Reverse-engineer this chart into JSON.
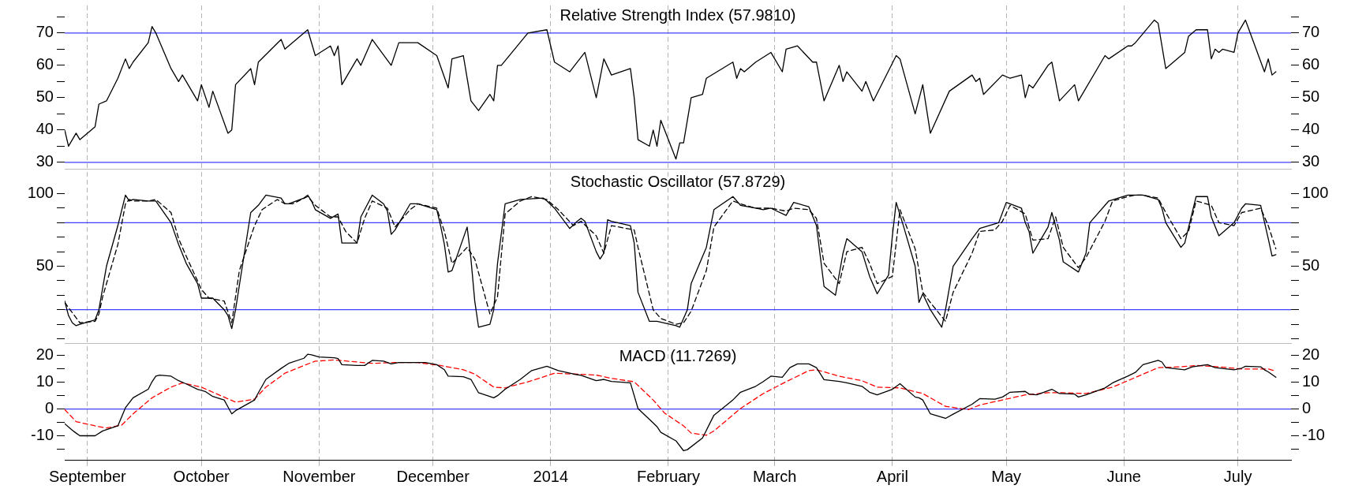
{
  "chart_data": [
    {
      "type": "line",
      "title": "Relative Strength Index (57.9810)",
      "xlim": [
        "2013-08-26",
        "2014-07-15"
      ],
      "xticks": [
        {
          "value": "2013-09-01",
          "label": null
        },
        {
          "value": "2013-10-01",
          "label": null
        },
        {
          "value": "2013-11-01",
          "label": null
        },
        {
          "value": "2013-12-01",
          "label": null
        },
        {
          "value": "2014-01-01",
          "label": null
        },
        {
          "value": "2014-02-01",
          "label": null
        },
        {
          "value": "2014-03-01",
          "label": null
        },
        {
          "value": "2014-04-01",
          "label": null
        },
        {
          "value": "2014-05-01",
          "label": null
        },
        {
          "value": "2014-06-01",
          "label": null
        },
        {
          "value": "2014-07-01",
          "label": null
        }
      ],
      "ylim": [
        28,
        78.5
      ],
      "yticks": [
        30,
        {
          "value": 35,
          "label": null
        },
        40,
        {
          "value": 45,
          "label": null
        },
        50,
        {
          "value": 55,
          "label": null
        },
        60,
        {
          "value": 65,
          "label": null
        },
        70,
        {
          "value": 75,
          "label": null
        }
      ],
      "y2lim": [
        28,
        78.5
      ],
      "y2ticks": [
        30,
        {
          "value": 35,
          "label": null
        },
        40,
        {
          "value": 45,
          "label": null
        },
        50,
        {
          "value": 55,
          "label": null
        },
        60,
        {
          "value": 65,
          "label": null
        },
        70,
        {
          "value": 75,
          "label": null
        }
      ],
      "grid": "x",
      "tick_labels": "y",
      "marker": "none",
      "ref_lines": [
        {
          "axis": "y",
          "value": 70,
          "color": "#4040ff"
        },
        {
          "axis": "y",
          "value": 30,
          "color": "#4040ff"
        }
      ],
      "series": [
        {
          "color": "#000000",
          "line_style": "solid",
          "x": [
            "2013-08-26",
            "2013-08-27",
            "2013-08-28",
            "2013-08-29",
            "2013-08-30",
            "2013-09-03",
            "2013-09-04",
            "2013-09-06",
            "2013-09-09",
            "2013-09-11",
            "2013-09-12",
            "2013-09-13",
            "2013-09-17",
            "2013-09-18",
            "2013-09-19",
            "2013-09-23",
            "2013-09-25",
            "2013-09-26",
            "2013-09-30",
            "2013-10-01",
            "2013-10-03",
            "2013-10-04",
            "2013-10-08",
            "2013-10-09",
            "2013-10-10",
            "2013-10-14",
            "2013-10-15",
            "2013-10-16",
            "2013-10-22",
            "2013-10-23",
            "2013-10-29",
            "2013-10-31",
            "2013-11-04",
            "2013-11-05",
            "2013-11-06",
            "2013-11-07",
            "2013-11-11",
            "2013-11-12",
            "2013-11-15",
            "2013-11-20",
            "2013-11-22",
            "2013-11-27",
            "2013-12-02",
            "2013-12-05",
            "2013-12-06",
            "2013-12-09",
            "2013-12-11",
            "2013-12-13",
            "2013-12-16",
            "2013-12-17",
            "2013-12-18",
            "2013-12-19",
            "2013-12-26",
            "2013-12-31",
            "2014-01-02",
            "2014-01-06",
            "2014-01-10",
            "2014-01-13",
            "2014-01-15",
            "2014-01-17",
            "2014-01-22",
            "2014-01-23",
            "2014-01-24",
            "2014-01-27",
            "2014-01-28",
            "2014-01-29",
            "2014-01-30",
            "2014-01-31",
            "2014-02-03",
            "2014-02-04",
            "2014-02-05",
            "2014-02-07",
            "2014-02-10",
            "2014-02-11",
            "2014-02-18",
            "2014-02-19",
            "2014-02-20",
            "2014-02-21",
            "2014-02-24",
            "2014-02-28",
            "2014-03-03",
            "2014-03-04",
            "2014-03-07",
            "2014-03-11",
            "2014-03-12",
            "2014-03-14",
            "2014-03-18",
            "2014-03-19",
            "2014-03-20",
            "2014-03-24",
            "2014-03-25",
            "2014-03-27",
            "2014-04-02",
            "2014-04-03",
            "2014-04-07",
            "2014-04-09",
            "2014-04-11",
            "2014-04-16",
            "2014-04-22",
            "2014-04-23",
            "2014-04-24",
            "2014-04-25",
            "2014-04-30",
            "2014-05-02",
            "2014-05-05",
            "2014-05-06",
            "2014-05-07",
            "2014-05-08",
            "2014-05-12",
            "2014-05-13",
            "2014-05-15",
            "2014-05-19",
            "2014-05-20",
            "2014-05-27",
            "2014-05-28",
            "2014-06-02",
            "2014-06-03",
            "2014-06-04",
            "2014-06-09",
            "2014-06-10",
            "2014-06-12",
            "2014-06-17",
            "2014-06-18",
            "2014-06-20",
            "2014-06-23",
            "2014-06-24",
            "2014-06-25",
            "2014-06-26",
            "2014-06-27",
            "2014-06-30",
            "2014-07-01",
            "2014-07-03",
            "2014-07-08",
            "2014-07-09",
            "2014-07-10",
            "2014-07-11"
          ],
          "values": [
            40,
            35,
            37,
            39,
            37,
            41,
            48,
            49,
            56,
            62,
            59,
            61,
            67,
            72,
            70,
            59,
            55,
            57,
            49,
            54,
            47,
            52,
            39,
            40,
            54,
            59,
            54,
            61,
            68,
            65,
            71,
            63,
            66,
            63,
            66,
            54,
            62,
            60,
            68,
            60,
            67,
            67,
            63,
            53,
            62,
            63,
            49,
            46,
            51,
            49,
            60,
            60,
            70,
            71,
            61,
            58,
            64,
            50,
            62,
            57,
            59,
            50,
            37,
            35,
            40,
            35,
            43,
            40,
            31,
            36,
            36,
            50,
            51,
            56,
            61,
            56,
            59,
            58,
            61,
            64,
            58,
            65,
            66,
            61,
            61,
            49,
            60,
            55,
            58,
            52,
            55,
            49,
            63,
            62,
            45,
            54,
            39,
            52,
            57,
            55,
            56,
            51,
            57,
            56,
            57,
            50,
            54,
            53,
            60,
            61,
            49,
            54,
            49,
            63,
            62,
            66,
            66,
            67,
            74,
            73,
            59,
            64,
            69,
            71,
            71,
            62,
            65,
            64,
            65,
            64,
            70,
            74,
            58,
            62,
            57,
            58
          ]
        }
      ]
    },
    {
      "type": "line",
      "title": "Stochastic Oscillator (57.8729)",
      "xlim": [
        "2013-08-26",
        "2014-07-15"
      ],
      "xticks": [
        {
          "value": "2013-09-01",
          "label": null
        },
        {
          "value": "2013-10-01",
          "label": null
        },
        {
          "value": "2013-11-01",
          "label": null
        },
        {
          "value": "2013-12-01",
          "label": null
        },
        {
          "value": "2014-01-01",
          "label": null
        },
        {
          "value": "2014-02-01",
          "label": null
        },
        {
          "value": "2014-03-01",
          "label": null
        },
        {
          "value": "2014-04-01",
          "label": null
        },
        {
          "value": "2014-05-01",
          "label": null
        },
        {
          "value": "2014-06-01",
          "label": null
        },
        {
          "value": "2014-07-01",
          "label": null
        }
      ],
      "ylim": [
        -3,
        115
      ],
      "yticks": [
        {
          "value": 0,
          "label": null
        },
        {
          "value": 10,
          "label": null
        },
        {
          "value": 20,
          "label": null
        },
        {
          "value": 30,
          "label": null
        },
        {
          "value": 40,
          "label": null
        },
        50,
        {
          "value": 60,
          "label": null
        },
        {
          "value": 70,
          "label": null
        },
        {
          "value": 80,
          "label": null
        },
        {
          "value": 90,
          "label": null
        },
        100
      ],
      "y2lim": [
        -3,
        115
      ],
      "y2ticks": [
        {
          "value": 0,
          "label": null
        },
        {
          "value": 10,
          "label": null
        },
        {
          "value": 20,
          "label": null
        },
        {
          "value": 30,
          "label": null
        },
        {
          "value": 40,
          "label": null
        },
        50,
        {
          "value": 60,
          "label": null
        },
        {
          "value": 70,
          "label": null
        },
        {
          "value": 80,
          "label": null
        },
        {
          "value": 90,
          "label": null
        },
        100
      ],
      "grid": "x",
      "tick_labels": "y",
      "marker": "none",
      "ref_lines": [
        {
          "axis": "y",
          "value": 80,
          "color": "#4040ff"
        },
        {
          "axis": "y",
          "value": 20,
          "color": "#4040ff"
        }
      ],
      "series": [
        {
          "color": "#000000",
          "line_style": "solid",
          "x": [
            "2013-08-26",
            "2013-08-27",
            "2013-08-28",
            "2013-08-29",
            "2013-08-30",
            "2013-09-03",
            "2013-09-04",
            "2013-09-06",
            "2013-09-09",
            "2013-09-11",
            "2013-09-12",
            "2013-09-13",
            "2013-09-17",
            "2013-09-19",
            "2013-09-23",
            "2013-09-25",
            "2013-09-27",
            "2013-09-30",
            "2013-10-01",
            "2013-10-04",
            "2013-10-07",
            "2013-10-08",
            "2013-10-09",
            "2013-10-10",
            "2013-10-14",
            "2013-10-16",
            "2013-10-18",
            "2013-10-22",
            "2013-10-23",
            "2013-10-24",
            "2013-10-28",
            "2013-10-29",
            "2013-10-30",
            "2013-10-31",
            "2013-11-04",
            "2013-11-06",
            "2013-11-07",
            "2013-11-11",
            "2013-11-12",
            "2013-11-15",
            "2013-11-18",
            "2013-11-19",
            "2013-11-20",
            "2013-11-21",
            "2013-11-25",
            "2013-11-27",
            "2013-12-02",
            "2013-12-03",
            "2013-12-04",
            "2013-12-05",
            "2013-12-06",
            "2013-12-10",
            "2013-12-11",
            "2013-12-12",
            "2013-12-13",
            "2013-12-16",
            "2013-12-17",
            "2013-12-18",
            "2013-12-20",
            "2013-12-24",
            "2013-12-30",
            "2013-12-31",
            "2014-01-02",
            "2014-01-06",
            "2014-01-08",
            "2014-01-09",
            "2014-01-10",
            "2014-01-13",
            "2014-01-14",
            "2014-01-15",
            "2014-01-16",
            "2014-01-17",
            "2014-01-22",
            "2014-01-23",
            "2014-01-24",
            "2014-01-27",
            "2014-01-29",
            "2014-02-03",
            "2014-02-04",
            "2014-02-06",
            "2014-02-07",
            "2014-02-11",
            "2014-02-13",
            "2014-02-18",
            "2014-02-20",
            "2014-02-24",
            "2014-02-26",
            "2014-02-28",
            "2014-03-04",
            "2014-03-06",
            "2014-03-10",
            "2014-03-12",
            "2014-03-13",
            "2014-03-14",
            "2014-03-17",
            "2014-03-19",
            "2014-03-20",
            "2014-03-24",
            "2014-03-26",
            "2014-03-28",
            "2014-03-31",
            "2014-04-01",
            "2014-04-02",
            "2014-04-04",
            "2014-04-07",
            "2014-04-08",
            "2014-04-09",
            "2014-04-11",
            "2014-04-14",
            "2014-04-15",
            "2014-04-17",
            "2014-04-22",
            "2014-04-24",
            "2014-04-29",
            "2014-05-01",
            "2014-05-05",
            "2014-05-06",
            "2014-05-07",
            "2014-05-08",
            "2014-05-12",
            "2014-05-13",
            "2014-05-15",
            "2014-05-16",
            "2014-05-20",
            "2014-05-22",
            "2014-05-23",
            "2014-05-28",
            "2014-06-02",
            "2014-06-06",
            "2014-06-10",
            "2014-06-11",
            "2014-06-12",
            "2014-06-16",
            "2014-06-17",
            "2014-06-20",
            "2014-06-23",
            "2014-06-24",
            "2014-06-26",
            "2014-06-30",
            "2014-07-02",
            "2014-07-03",
            "2014-07-07",
            "2014-07-09",
            "2014-07-10",
            "2014-07-11"
          ],
          "values": [
            26,
            16,
            11,
            9,
            10,
            13,
            20,
            50,
            78,
            99,
            95,
            96,
            95,
            95,
            80,
            65,
            52,
            38,
            28,
            28,
            20,
            16,
            7,
            20,
            87,
            92,
            99,
            97,
            93,
            93,
            97,
            99,
            95,
            89,
            83,
            86,
            66,
            66,
            84,
            99,
            93,
            88,
            72,
            75,
            93,
            93,
            89,
            78,
            65,
            46,
            47,
            77,
            55,
            26,
            8,
            10,
            20,
            52,
            93,
            96,
            97,
            95,
            90,
            76,
            81,
            83,
            81,
            60,
            55,
            59,
            82,
            81,
            78,
            66,
            32,
            12,
            12,
            9,
            8,
            20,
            38,
            63,
            89,
            98,
            92,
            90,
            89,
            90,
            85,
            94,
            91,
            78,
            57,
            36,
            30,
            59,
            69,
            60,
            43,
            31,
            44,
            71,
            94,
            77,
            50,
            25,
            31,
            20,
            8,
            20,
            50,
            69,
            76,
            80,
            94,
            90,
            80,
            74,
            59,
            77,
            87,
            68,
            53,
            46,
            59,
            80,
            95,
            99,
            99,
            96,
            90,
            80,
            63,
            66,
            98,
            98,
            84,
            71,
            80,
            90,
            93,
            92,
            69,
            57,
            58
          ]
        },
        {
          "color": "#000000",
          "line_style": "dashed",
          "x": [
            "2013-08-26",
            "2013-08-28",
            "2013-08-30",
            "2013-09-03",
            "2013-09-04",
            "2013-09-05",
            "2013-09-09",
            "2013-09-11",
            "2013-09-12",
            "2013-09-13",
            "2013-09-17",
            "2013-09-19",
            "2013-09-23",
            "2013-09-25",
            "2013-09-27",
            "2013-10-01",
            "2013-10-03",
            "2013-10-07",
            "2013-10-09",
            "2013-10-11",
            "2013-10-15",
            "2013-10-17",
            "2013-10-21",
            "2013-10-23",
            "2013-10-25",
            "2013-10-29",
            "2013-10-31",
            "2013-11-04",
            "2013-11-06",
            "2013-11-08",
            "2013-11-11",
            "2013-11-13",
            "2013-11-15",
            "2013-11-19",
            "2013-11-21",
            "2013-11-25",
            "2013-11-27",
            "2013-12-02",
            "2013-12-04",
            "2013-12-06",
            "2013-12-10",
            "2013-12-12",
            "2013-12-16",
            "2013-12-18",
            "2013-12-20",
            "2013-12-24",
            "2013-12-27",
            "2013-12-31",
            "2014-01-03",
            "2014-01-07",
            "2014-01-09",
            "2014-01-13",
            "2014-01-15",
            "2014-01-17",
            "2014-01-23",
            "2014-01-24",
            "2014-01-28",
            "2014-01-30",
            "2014-02-03",
            "2014-02-05",
            "2014-02-07",
            "2014-02-11",
            "2014-02-13",
            "2014-02-18",
            "2014-02-20",
            "2014-02-24",
            "2014-02-26",
            "2014-02-28",
            "2014-03-04",
            "2014-03-06",
            "2014-03-10",
            "2014-03-12",
            "2014-03-14",
            "2014-03-18",
            "2014-03-20",
            "2014-03-24",
            "2014-03-26",
            "2014-03-28",
            "2014-04-01",
            "2014-04-03",
            "2014-04-07",
            "2014-04-09",
            "2014-04-11",
            "2014-04-15",
            "2014-04-17",
            "2014-04-22",
            "2014-04-24",
            "2014-04-28",
            "2014-04-30",
            "2014-05-02",
            "2014-05-06",
            "2014-05-08",
            "2014-05-12",
            "2014-05-14",
            "2014-05-16",
            "2014-05-20",
            "2014-05-22",
            "2014-05-27",
            "2014-05-29",
            "2014-06-02",
            "2014-06-04",
            "2014-06-06",
            "2014-06-10",
            "2014-06-12",
            "2014-06-16",
            "2014-06-18",
            "2014-06-20",
            "2014-06-24",
            "2014-06-26",
            "2014-06-30",
            "2014-07-02",
            "2014-07-07",
            "2014-07-09",
            "2014-07-11"
          ],
          "values": [
            25,
            18,
            11,
            12,
            17,
            29,
            65,
            93,
            96,
            95,
            95,
            96,
            87,
            69,
            57,
            34,
            28,
            26,
            11,
            47,
            78,
            89,
            96,
            93,
            93,
            98,
            92,
            84,
            84,
            74,
            66,
            83,
            95,
            90,
            77,
            89,
            93,
            90,
            74,
            52,
            63,
            55,
            17,
            29,
            86,
            95,
            98,
            96,
            89,
            78,
            81,
            71,
            59,
            78,
            75,
            63,
            20,
            14,
            10,
            11,
            19,
            47,
            77,
            95,
            93,
            90,
            90,
            90,
            88,
            90,
            89,
            83,
            52,
            38,
            60,
            63,
            52,
            38,
            43,
            89,
            62,
            32,
            25,
            12,
            32,
            59,
            74,
            75,
            81,
            92,
            86,
            68,
            69,
            84,
            63,
            49,
            56,
            81,
            95,
            98,
            99,
            99,
            97,
            87,
            69,
            74,
            95,
            92,
            80,
            78,
            87,
            90,
            78,
            62
          ]
        }
      ]
    },
    {
      "type": "line",
      "title": "MACD (11.7269)",
      "xlim": [
        "2013-08-26",
        "2014-07-15"
      ],
      "xticks": [
        {
          "value": "2013-09-01",
          "label": "September"
        },
        {
          "value": "2013-10-01",
          "label": "October"
        },
        {
          "value": "2013-11-01",
          "label": "November"
        },
        {
          "value": "2013-12-01",
          "label": "December"
        },
        {
          "value": "2014-01-01",
          "label": "2014"
        },
        {
          "value": "2014-02-01",
          "label": "February"
        },
        {
          "value": "2014-03-01",
          "label": "March"
        },
        {
          "value": "2014-04-01",
          "label": "April"
        },
        {
          "value": "2014-05-01",
          "label": "May"
        },
        {
          "value": "2014-06-01",
          "label": "June"
        },
        {
          "value": "2014-07-01",
          "label": "July"
        }
      ],
      "ylim": [
        -19,
        23.5
      ],
      "yticks": [
        {
          "value": -15,
          "label": null
        },
        -10,
        {
          "value": -5,
          "label": null
        },
        0,
        {
          "value": 5,
          "label": null
        },
        10,
        {
          "value": 15,
          "label": null
        },
        20
      ],
      "y2lim": [
        -19,
        23.5
      ],
      "y2ticks": [
        {
          "value": -15,
          "label": null
        },
        -10,
        {
          "value": -5,
          "label": null
        },
        0,
        {
          "value": 5,
          "label": null
        },
        10,
        {
          "value": 15,
          "label": null
        },
        20
      ],
      "grid": "x",
      "marker": "none",
      "ref_lines": [
        {
          "axis": "y",
          "value": 0,
          "color": "#4040ff"
        }
      ],
      "series": [
        {
          "color": "#000000",
          "line_style": "solid",
          "x": [
            "2013-08-26",
            "2013-08-28",
            "2013-08-29",
            "2013-08-30",
            "2013-09-03",
            "2013-09-05",
            "2013-09-09",
            "2013-09-11",
            "2013-09-13",
            "2013-09-17",
            "2013-09-18",
            "2013-09-19",
            "2013-09-20",
            "2013-09-23",
            "2013-09-25",
            "2013-09-27",
            "2013-09-30",
            "2013-10-02",
            "2013-10-04",
            "2013-10-07",
            "2013-10-09",
            "2013-10-10",
            "2013-10-14",
            "2013-10-15",
            "2013-10-16",
            "2013-10-18",
            "2013-10-22",
            "2013-10-24",
            "2013-10-28",
            "2013-10-29",
            "2013-10-30",
            "2013-11-01",
            "2013-11-05",
            "2013-11-06",
            "2013-11-07",
            "2013-11-11",
            "2013-11-13",
            "2013-11-15",
            "2013-11-18",
            "2013-11-20",
            "2013-11-22",
            "2013-11-26",
            "2013-11-29",
            "2013-12-02",
            "2013-12-04",
            "2013-12-05",
            "2013-12-09",
            "2013-12-11",
            "2013-12-13",
            "2013-12-17",
            "2013-12-18",
            "2013-12-20",
            "2013-12-24",
            "2013-12-27",
            "2013-12-31",
            "2014-01-03",
            "2014-01-07",
            "2014-01-09",
            "2014-01-13",
            "2014-01-15",
            "2014-01-17",
            "2014-01-22",
            "2014-01-24",
            "2014-01-28",
            "2014-01-29",
            "2014-01-30",
            "2014-02-03",
            "2014-02-05",
            "2014-02-06",
            "2014-02-10",
            "2014-02-13",
            "2014-02-18",
            "2014-02-20",
            "2014-02-24",
            "2014-02-26",
            "2014-02-28",
            "2014-03-03",
            "2014-03-05",
            "2014-03-07",
            "2014-03-10",
            "2014-03-12",
            "2014-03-14",
            "2014-03-18",
            "2014-03-20",
            "2014-03-24",
            "2014-03-26",
            "2014-03-28",
            "2014-04-01",
            "2014-04-03",
            "2014-04-07",
            "2014-04-08",
            "2014-04-09",
            "2014-04-11",
            "2014-04-15",
            "2014-04-17",
            "2014-04-22",
            "2014-04-24",
            "2014-04-28",
            "2014-04-30",
            "2014-05-02",
            "2014-05-06",
            "2014-05-07",
            "2014-05-09",
            "2014-05-13",
            "2014-05-15",
            "2014-05-19",
            "2014-05-20",
            "2014-05-22",
            "2014-05-27",
            "2014-05-29",
            "2014-06-02",
            "2014-06-04",
            "2014-06-06",
            "2014-06-10",
            "2014-06-11",
            "2014-06-12",
            "2014-06-17",
            "2014-06-19",
            "2014-06-23",
            "2014-06-25",
            "2014-06-30",
            "2014-07-02",
            "2014-07-03",
            "2014-07-07",
            "2014-07-08",
            "2014-07-09",
            "2014-07-11"
          ],
          "values": [
            -5.5,
            -7.9,
            -9,
            -10,
            -10,
            -8.2,
            -6.3,
            0.5,
            4.2,
            7.4,
            10.2,
            12.3,
            12.7,
            12.3,
            10.6,
            9.4,
            7.4,
            6.6,
            4.7,
            3.4,
            -1.8,
            -0.6,
            2.6,
            3.4,
            6.1,
            11.1,
            15.2,
            17.1,
            19,
            20.5,
            20.3,
            19.5,
            19.2,
            18.9,
            16.6,
            16.3,
            16.3,
            18.2,
            17.9,
            16.9,
            17.4,
            17.4,
            17.4,
            16.6,
            14.7,
            12.3,
            12.1,
            11.1,
            6.1,
            4.2,
            5,
            7.4,
            11.1,
            14.4,
            16,
            14.4,
            13.1,
            12.6,
            10.6,
            11.1,
            10.3,
            9.8,
            0.2,
            -5.2,
            -6.6,
            -8.7,
            -11.9,
            -15.6,
            -15.2,
            -10.8,
            -2.3,
            3.4,
            6.3,
            8.5,
            10.3,
            12.3,
            11.9,
            15.5,
            16.9,
            16.9,
            15.5,
            11,
            10.3,
            9.8,
            8.5,
            6.3,
            5.3,
            7.4,
            9.5,
            4.5,
            4.2,
            3.4,
            -1.8,
            -3.5,
            -1.9,
            1.8,
            3.9,
            3.7,
            4.5,
            6.3,
            6.6,
            5.6,
            5.3,
            7.4,
            5.8,
            5.6,
            4.5,
            5.3,
            7.9,
            9.8,
            12.3,
            13.7,
            16.6,
            18.2,
            17.6,
            15.5,
            14.7,
            15.8,
            16.6,
            15.5,
            14.7,
            15.3,
            16,
            15.8,
            14.7,
            13.9,
            11.9
          ]
        },
        {
          "color": "#ff0000",
          "line_style": "dashed",
          "x": [
            "2013-08-26",
            "2013-08-29",
            "2013-09-03",
            "2013-09-06",
            "2013-09-10",
            "2013-09-13",
            "2013-09-18",
            "2013-09-23",
            "2013-09-26",
            "2013-10-01",
            "2013-10-04",
            "2013-10-10",
            "2013-10-15",
            "2013-10-18",
            "2013-10-23",
            "2013-10-28",
            "2013-10-31",
            "2013-11-05",
            "2013-11-11",
            "2013-11-15",
            "2013-11-21",
            "2013-11-27",
            "2013-12-03",
            "2013-12-09",
            "2013-12-12",
            "2013-12-17",
            "2013-12-20",
            "2013-12-27",
            "2014-01-02",
            "2014-01-07",
            "2014-01-13",
            "2014-01-17",
            "2014-01-23",
            "2014-01-28",
            "2014-01-31",
            "2014-02-05",
            "2014-02-07",
            "2014-02-11",
            "2014-02-13",
            "2014-02-20",
            "2014-02-26",
            "2014-03-04",
            "2014-03-10",
            "2014-03-12",
            "2014-03-18",
            "2014-03-24",
            "2014-03-28",
            "2014-04-03",
            "2014-04-09",
            "2014-04-15",
            "2014-04-21",
            "2014-04-24",
            "2014-04-30",
            "2014-05-06",
            "2014-05-12",
            "2014-05-16",
            "2014-05-22",
            "2014-05-29",
            "2014-06-04",
            "2014-06-10",
            "2014-06-16",
            "2014-06-20",
            "2014-06-26",
            "2014-07-02",
            "2014-07-09",
            "2014-07-11"
          ],
          "values": [
            -0.2,
            -4.7,
            -6.3,
            -7.1,
            -6,
            -1.8,
            4.2,
            8.2,
            9.8,
            8.2,
            6.3,
            2.6,
            3.7,
            8.2,
            13.4,
            16.3,
            17.9,
            18.4,
            17.6,
            17.1,
            17.4,
            17.4,
            16.3,
            14.7,
            13.1,
            8.2,
            7.9,
            10.6,
            13.4,
            13.1,
            12.7,
            11.5,
            10.2,
            3.4,
            -1.5,
            -6.3,
            -9,
            -9.8,
            -8.2,
            0.2,
            5.8,
            10.2,
            14.4,
            14.7,
            12.3,
            10.6,
            8.2,
            7.9,
            5.8,
            1,
            -0.2,
            1.5,
            3.4,
            5.3,
            6.1,
            6.1,
            5.8,
            8.2,
            11.8,
            15.5,
            15.8,
            16.3,
            15.8,
            15,
            15,
            14.2
          ]
        }
      ]
    }
  ]
}
